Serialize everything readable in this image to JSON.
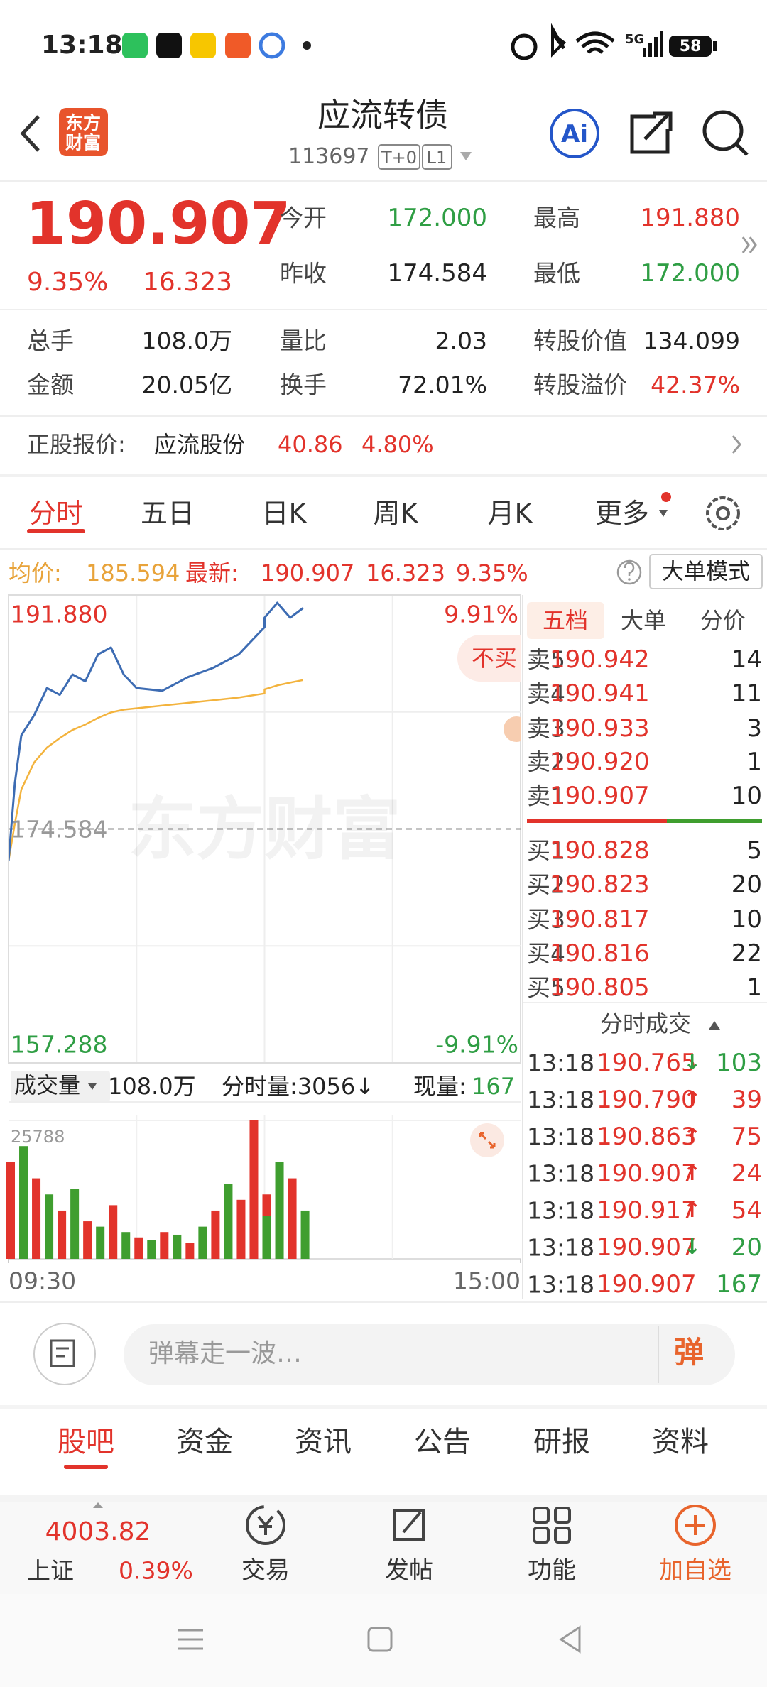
{
  "status_bar": {
    "time": "13:18",
    "network": "5G",
    "battery": "58"
  },
  "header": {
    "logo": [
      "东方",
      "财富"
    ],
    "title": "应流转债",
    "code": "113697",
    "badges": [
      "T+0",
      "L1"
    ],
    "ai": "Ai"
  },
  "quote": {
    "price": "190.907",
    "change_pct": "9.35%",
    "change": "16.323",
    "stats": [
      [
        {
          "label": "今开",
          "value": "172.000"
        },
        {
          "label": "最高",
          "value": "191.880"
        }
      ],
      [
        {
          "label": "昨收",
          "value": "174.584"
        },
        {
          "label": "最低",
          "value": "172.000"
        }
      ]
    ],
    "details": [
      [
        {
          "label": "总手",
          "value": "108.0万"
        },
        {
          "label": "量比",
          "value": "2.03"
        },
        {
          "label": "转股价值",
          "value": "134.099"
        }
      ],
      [
        {
          "label": "金额",
          "value": "20.05亿"
        },
        {
          "label": "换手",
          "value": "72.01%"
        },
        {
          "label": "转股溢价",
          "value": "42.37%"
        }
      ]
    ]
  },
  "underlying": {
    "label": "正股报价:",
    "name": "应流股份",
    "price": "40.86",
    "change_pct": "4.80%"
  },
  "chart_tabs": [
    "分时",
    "五日",
    "日K",
    "周K",
    "月K",
    "更多"
  ],
  "info_line": {
    "avg_label": "均价:",
    "avg": "185.594",
    "last_label": "最新:",
    "last": "190.907",
    "change": "16.323",
    "change_pct": "9.35%",
    "mode_button": "大单模式"
  },
  "overlay_tag": "不买",
  "volume_header": {
    "label": "成交量",
    "total": "108.0万",
    "minute_volume": "分时量:3056↓",
    "now_label": "现量:",
    "now_value": "167"
  },
  "chart_data": [
    {
      "type": "line",
      "watermark": "东方财富",
      "x": [
        "09:30",
        "09:33",
        "09:36",
        "09:42",
        "09:48",
        "09:54",
        "10:00",
        "10:06",
        "10:12",
        "10:18",
        "10:24",
        "10:30",
        "10:42",
        "10:54",
        "11:06",
        "11:18",
        "11:30",
        "13:00",
        "13:06",
        "13:12",
        "13:18"
      ],
      "xlim": [
        "09:30",
        "15:00"
      ],
      "ylim": [
        157.288,
        191.88
      ],
      "yticks": [
        157.288,
        174.584,
        {
          "value": 191.88,
          "label": "191.880"
        }
      ],
      "y2lim": [
        -9.91,
        9.91
      ],
      "y2ticks": [
        {
          "value": -9.91,
          "label": "-9.91%"
        },
        {
          "value": 9.91,
          "label": "9.91%"
        }
      ],
      "series": [
        {
          "color": "#3d6cb3",
          "values": [
            172.2,
            178.0,
            181.5,
            183.0,
            185.0,
            184.5,
            186.0,
            185.5,
            187.5,
            188.0,
            186.0,
            185.0,
            184.8,
            185.8,
            186.5,
            187.5,
            189.5,
            190.2,
            191.3,
            190.2,
            190.907
          ]
        },
        {
          "color": "#f3b33d",
          "values": [
            172.2,
            175.0,
            177.5,
            179.5,
            180.6,
            181.3,
            181.9,
            182.3,
            182.8,
            183.2,
            183.4,
            183.5,
            183.7,
            183.9,
            184.1,
            184.3,
            184.6,
            184.9,
            185.2,
            185.4,
            185.594
          ]
        }
      ]
    },
    {
      "type": "bar",
      "x": [
        "09:30",
        "09:36",
        "09:42",
        "09:48",
        "09:54",
        "10:00",
        "10:06",
        "10:12",
        "10:18",
        "10:24",
        "10:30",
        "10:36",
        "10:42",
        "10:48",
        "10:54",
        "11:00",
        "11:06",
        "11:12",
        "11:18",
        "11:24",
        "11:30",
        "13:00",
        "13:06",
        "13:12",
        "13:18"
      ],
      "xlim": [
        "09:30",
        "15:00"
      ],
      "xticks": [
        "09:30",
        "15:00"
      ],
      "ylim": [
        0,
        25788
      ],
      "yticks": [
        25788
      ],
      "series": [
        {
          "color": "#e2332b",
          "values": [
            18000,
            null,
            15000,
            null,
            9000,
            null,
            7000,
            null,
            10000,
            null,
            4000,
            null,
            5000,
            null,
            3000,
            null,
            9000,
            null,
            11000,
            25788,
            null,
            12000,
            null,
            15000,
            null
          ]
        },
        {
          "color": "#3f9e2f",
          "values": [
            null,
            21000,
            null,
            12000,
            null,
            13000,
            null,
            6000,
            null,
            5000,
            null,
            3500,
            null,
            4500,
            null,
            6000,
            null,
            14000,
            null,
            null,
            8000,
            null,
            18000,
            null,
            9000
          ]
        }
      ]
    }
  ],
  "order_book": {
    "tabs": [
      "五档",
      "大单",
      "分价"
    ],
    "asks": [
      {
        "label": "卖5",
        "price": "190.942",
        "qty": "14"
      },
      {
        "label": "卖4",
        "price": "190.941",
        "qty": "11"
      },
      {
        "label": "卖3",
        "price": "190.933",
        "qty": "3"
      },
      {
        "label": "卖2",
        "price": "190.920",
        "qty": "1"
      },
      {
        "label": "卖1",
        "price": "190.907",
        "qty": "10"
      }
    ],
    "bids": [
      {
        "label": "买1",
        "price": "190.828",
        "qty": "5"
      },
      {
        "label": "买2",
        "price": "190.823",
        "qty": "20"
      },
      {
        "label": "买3",
        "price": "190.817",
        "qty": "10"
      },
      {
        "label": "买4",
        "price": "190.816",
        "qty": "22"
      },
      {
        "label": "买5",
        "price": "190.805",
        "qty": "1"
      }
    ]
  },
  "trades": {
    "title": "分时成交",
    "rows": [
      {
        "time": "13:18",
        "price": "190.765",
        "arrow": "↓",
        "qty": "103",
        "color": "#2f9e44"
      },
      {
        "time": "13:18",
        "price": "190.790",
        "arrow": "↑",
        "qty": "39",
        "color": "#e2332b"
      },
      {
        "time": "13:18",
        "price": "190.863",
        "arrow": "↑",
        "qty": "75",
        "color": "#e2332b"
      },
      {
        "time": "13:18",
        "price": "190.907",
        "arrow": "↑",
        "qty": "24",
        "color": "#e2332b"
      },
      {
        "time": "13:18",
        "price": "190.917",
        "arrow": "↑",
        "qty": "54",
        "color": "#e2332b"
      },
      {
        "time": "13:18",
        "price": "190.907",
        "arrow": "↓",
        "qty": "20",
        "color": "#2f9e44"
      },
      {
        "time": "13:18",
        "price": "190.907",
        "qty": "167",
        "color": "#2f9e44"
      }
    ]
  },
  "comment_bar": {
    "placeholder": "弹幕走一波…",
    "button": "弹"
  },
  "section_tabs": [
    "股吧",
    "资金",
    "资讯",
    "公告",
    "研报",
    "资料"
  ],
  "bottom_bar": {
    "index_value": "4003.82",
    "index_name": "上证",
    "index_change": "0.39%",
    "actions": [
      "交易",
      "发帖",
      "功能",
      "加自选"
    ]
  }
}
